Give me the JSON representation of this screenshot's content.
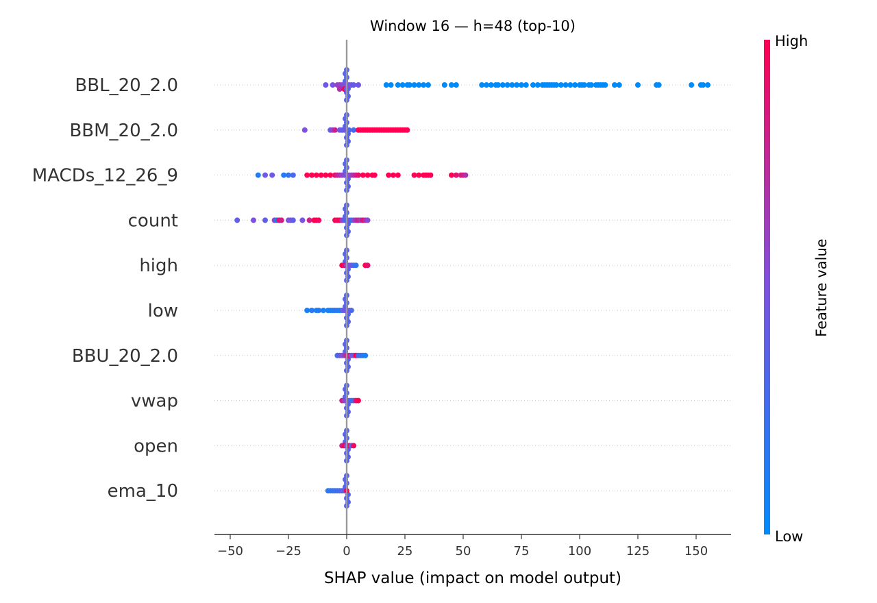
{
  "chart_data": {
    "type": "scatter",
    "title": "Window 16 — h=48 (top-10)",
    "xlabel": "SHAP value (impact on model output)",
    "xlim": [
      -55,
      165
    ],
    "xticks": [
      -50,
      -25,
      0,
      25,
      50,
      75,
      100,
      125,
      150
    ],
    "xtick_labels": [
      "−50",
      "−25",
      "0",
      "25",
      "50",
      "75",
      "100",
      "125",
      "150"
    ],
    "features": [
      "BBL_20_2.0",
      "BBM_20_2.0",
      "MACDs_12_26_9",
      "count",
      "high",
      "low",
      "BBU_20_2.0",
      "vwap",
      "open",
      "ema_10"
    ],
    "colorbar": {
      "label": "Feature value",
      "high_label": "High",
      "low_label": "Low",
      "high_color": "#ff0052",
      "low_color": "#008bfb"
    },
    "grid": false,
    "series": [
      {
        "feature": "BBL_20_2.0",
        "points": [
          [
            -9,
            0.45
          ],
          [
            -6,
            0.5
          ],
          [
            -4,
            0.6
          ],
          [
            -3,
            0.6
          ],
          [
            -2,
            0.55
          ],
          [
            -1,
            0.5
          ],
          [
            0,
            0.45
          ],
          [
            1,
            0.5
          ],
          [
            2,
            0.45
          ],
          [
            3,
            0.4
          ],
          [
            -3,
            0.7
          ],
          [
            -1,
            1.0
          ],
          [
            0,
            0.4
          ],
          [
            5,
            0.45
          ],
          [
            17,
            0
          ],
          [
            19,
            0
          ],
          [
            22,
            0
          ],
          [
            24,
            0
          ],
          [
            26,
            0
          ],
          [
            27,
            0
          ],
          [
            29,
            0
          ],
          [
            31,
            0
          ],
          [
            33,
            0
          ],
          [
            35,
            0
          ],
          [
            42,
            0
          ],
          [
            45,
            0
          ],
          [
            47,
            0
          ],
          [
            58,
            0
          ],
          [
            60,
            0
          ],
          [
            62,
            0
          ],
          [
            64,
            0
          ],
          [
            65,
            0
          ],
          [
            67,
            0
          ],
          [
            69,
            0
          ],
          [
            71,
            0
          ],
          [
            73,
            0
          ],
          [
            75,
            0
          ],
          [
            77,
            0
          ],
          [
            80,
            0
          ],
          [
            82,
            0
          ],
          [
            84,
            0
          ],
          [
            85,
            0
          ],
          [
            86,
            0
          ],
          [
            87,
            0
          ],
          [
            88,
            0
          ],
          [
            89,
            0
          ],
          [
            90,
            0
          ],
          [
            92,
            0
          ],
          [
            94,
            0
          ],
          [
            96,
            0
          ],
          [
            98,
            0
          ],
          [
            100,
            0
          ],
          [
            101,
            0
          ],
          [
            102,
            0
          ],
          [
            104,
            0
          ],
          [
            105,
            0
          ],
          [
            107,
            0
          ],
          [
            108,
            0
          ],
          [
            109,
            0
          ],
          [
            110,
            0
          ],
          [
            111,
            0
          ],
          [
            115,
            0
          ],
          [
            117,
            0
          ],
          [
            125,
            0
          ],
          [
            133,
            0
          ],
          [
            134,
            0
          ],
          [
            148,
            0
          ],
          [
            152,
            0
          ],
          [
            153,
            0
          ],
          [
            155,
            0
          ]
        ]
      },
      {
        "feature": "BBM_20_2.0",
        "points": [
          [
            -18,
            0.5
          ],
          [
            -7,
            0.4
          ],
          [
            -6,
            0.6
          ],
          [
            -5,
            0.8
          ],
          [
            -3,
            0.5
          ],
          [
            -2,
            0.4
          ],
          [
            -1,
            0.4
          ],
          [
            0,
            0.5
          ],
          [
            1,
            0.3
          ],
          [
            3,
            0.3
          ],
          [
            5,
            1.0
          ],
          [
            6,
            1.0
          ],
          [
            7,
            1.0
          ],
          [
            8,
            1.0
          ],
          [
            9,
            1.0
          ],
          [
            10,
            1.0
          ],
          [
            11,
            1.0
          ],
          [
            12,
            1.0
          ],
          [
            13,
            1.0
          ],
          [
            14,
            1.0
          ],
          [
            15,
            1.0
          ],
          [
            16,
            1.0
          ],
          [
            17,
            1.0
          ],
          [
            18,
            1.0
          ],
          [
            19,
            1.0
          ],
          [
            20,
            1.0
          ],
          [
            21,
            1.0
          ],
          [
            22,
            1.0
          ],
          [
            23,
            1.0
          ],
          [
            24,
            1.0
          ],
          [
            25,
            1.0
          ],
          [
            26,
            1.0
          ]
        ]
      },
      {
        "feature": "MACDs_12_26_9",
        "points": [
          [
            -38,
            0.15
          ],
          [
            -35,
            0.45
          ],
          [
            -32,
            0.45
          ],
          [
            -27,
            0.15
          ],
          [
            -25,
            0.2
          ],
          [
            -23,
            0.3
          ],
          [
            -17,
            1.0
          ],
          [
            -15,
            1.0
          ],
          [
            -13,
            1.0
          ],
          [
            -11,
            1.0
          ],
          [
            -9,
            1.0
          ],
          [
            -7,
            1.0
          ],
          [
            -5,
            0.9
          ],
          [
            -4,
            0.8
          ],
          [
            -3,
            0.7
          ],
          [
            -2,
            0.6
          ],
          [
            -1,
            0.55
          ],
          [
            0,
            0.5
          ],
          [
            1,
            0.55
          ],
          [
            2,
            0.6
          ],
          [
            3,
            0.7
          ],
          [
            4,
            0.8
          ],
          [
            5,
            0.9
          ],
          [
            7,
            1.0
          ],
          [
            9,
            1.0
          ],
          [
            11,
            1.0
          ],
          [
            12,
            1.0
          ],
          [
            18,
            1.0
          ],
          [
            20,
            1.0
          ],
          [
            22,
            1.0
          ],
          [
            29,
            1.0
          ],
          [
            31,
            1.0
          ],
          [
            33,
            1.0
          ],
          [
            34,
            1.0
          ],
          [
            35,
            1.0
          ],
          [
            36,
            1.0
          ],
          [
            45,
            1.0
          ],
          [
            47,
            0.9
          ],
          [
            49,
            0.8
          ],
          [
            50,
            0.85
          ],
          [
            51,
            0.7
          ]
        ]
      },
      {
        "feature": "count",
        "points": [
          [
            -47,
            0.4
          ],
          [
            -40,
            0.5
          ],
          [
            -35,
            0.4
          ],
          [
            -31,
            0.6
          ],
          [
            -30,
            0.15
          ],
          [
            -29,
            0.9
          ],
          [
            -28,
            0.8
          ],
          [
            -25,
            0.5
          ],
          [
            -24,
            0.5
          ],
          [
            -23,
            0.4
          ],
          [
            -19,
            0.5
          ],
          [
            -16,
            0.8
          ],
          [
            -14,
            1.0
          ],
          [
            -13,
            1.0
          ],
          [
            -12,
            0.95
          ],
          [
            -5,
            1.0
          ],
          [
            -4,
            0.9
          ],
          [
            -3,
            1.0
          ],
          [
            -2,
            0.6
          ],
          [
            -1,
            0.4
          ],
          [
            0,
            0.3
          ],
          [
            1,
            0.5
          ],
          [
            2,
            0.2
          ],
          [
            3,
            0.5
          ],
          [
            4,
            0.7
          ],
          [
            5,
            0.8
          ],
          [
            6,
            0.6
          ],
          [
            7,
            0.9
          ],
          [
            8,
            0.7
          ],
          [
            9,
            0.55
          ]
        ]
      },
      {
        "feature": "high",
        "points": [
          [
            -2,
            1.0
          ],
          [
            -1,
            0.9
          ],
          [
            0,
            0.55
          ],
          [
            1,
            0.5
          ],
          [
            2,
            0.45
          ],
          [
            3,
            0.3
          ],
          [
            4,
            0.2
          ],
          [
            8,
            1.0
          ],
          [
            9,
            0.9
          ]
        ]
      },
      {
        "feature": "low",
        "points": [
          [
            -17,
            0.1
          ],
          [
            -15,
            0.15
          ],
          [
            -13,
            0.1
          ],
          [
            -12,
            0.15
          ],
          [
            -10,
            0.1
          ],
          [
            -8,
            0.1
          ],
          [
            -7,
            0.1
          ],
          [
            -6,
            0.12
          ],
          [
            -5,
            0.15
          ],
          [
            -4,
            0.2
          ],
          [
            -3,
            0.1
          ],
          [
            -2,
            0.3
          ],
          [
            -1,
            0.5
          ],
          [
            0,
            0.45
          ],
          [
            1,
            0.5
          ],
          [
            2,
            0.3
          ]
        ]
      },
      {
        "feature": "BBU_20_2.0",
        "points": [
          [
            -4,
            0.25
          ],
          [
            -3,
            0.4
          ],
          [
            -2,
            0.5
          ],
          [
            -1,
            0.6
          ],
          [
            0,
            0.8
          ],
          [
            1,
            0.9
          ],
          [
            2,
            0.5
          ],
          [
            3,
            0.4
          ],
          [
            4,
            1.0
          ],
          [
            5,
            0.3
          ],
          [
            6,
            0.2
          ],
          [
            7,
            0.15
          ],
          [
            8,
            0.1
          ]
        ]
      },
      {
        "feature": "vwap",
        "points": [
          [
            -2,
            0.8
          ],
          [
            -1,
            0.6
          ],
          [
            0,
            0.5
          ],
          [
            1,
            0.45
          ],
          [
            2,
            0.2
          ],
          [
            3,
            0.3
          ],
          [
            4,
            0.9
          ],
          [
            5,
            1.0
          ]
        ]
      },
      {
        "feature": "open",
        "points": [
          [
            -2,
            0.8
          ],
          [
            -1,
            1.0
          ],
          [
            0,
            0.5
          ],
          [
            1,
            0.9
          ],
          [
            2,
            0.4
          ],
          [
            3,
            0.95
          ]
        ]
      },
      {
        "feature": "ema_10",
        "points": [
          [
            -8,
            0.15
          ],
          [
            -7,
            0.2
          ],
          [
            -6,
            0.2
          ],
          [
            -5,
            0.25
          ],
          [
            -4,
            0.2
          ],
          [
            -3,
            0.3
          ],
          [
            -2,
            0.35
          ],
          [
            -1,
            0.4
          ],
          [
            0,
            1.0
          ]
        ]
      }
    ]
  }
}
